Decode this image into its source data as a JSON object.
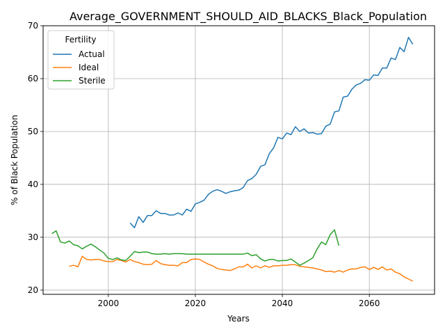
{
  "chart_data": {
    "type": "line",
    "title": "Average_GOVERNMENT_SHOULD_AID_BLACKS_Black_Population",
    "xlabel": "Years",
    "ylabel": "% of Black Population",
    "xlim": [
      1985,
      2075
    ],
    "ylim": [
      19.2,
      70
    ],
    "xticks": [
      2000,
      2020,
      2040,
      2060
    ],
    "yticks": [
      20,
      30,
      40,
      50,
      60,
      70
    ],
    "grid": true,
    "legend": {
      "title": "Fertility",
      "position": "top-left"
    },
    "series": [
      {
        "name": "Actual",
        "color": "#1f77b4",
        "x": [
          2005,
          2006,
          2007,
          2008,
          2009,
          2010,
          2011,
          2012,
          2013,
          2014,
          2015,
          2016,
          2017,
          2018,
          2019,
          2020,
          2021,
          2022,
          2023,
          2024,
          2025,
          2026,
          2027,
          2028,
          2029,
          2030,
          2031,
          2032,
          2033,
          2034,
          2035,
          2036,
          2037,
          2038,
          2039,
          2040,
          2041,
          2042,
          2043,
          2044,
          2045,
          2046,
          2047,
          2048,
          2049,
          2050,
          2051,
          2052,
          2053,
          2054,
          2055,
          2056,
          2057,
          2058,
          2059,
          2060,
          2061,
          2062,
          2063,
          2064,
          2065,
          2066,
          2067,
          2068,
          2069,
          2070
        ],
        "y": [
          32.7,
          31.8,
          33.9,
          32.8,
          34.1,
          34.1,
          35.0,
          34.5,
          34.5,
          34.2,
          34.2,
          34.6,
          34.2,
          35.3,
          34.9,
          36.3,
          36.6,
          37.0,
          38.1,
          38.7,
          39.0,
          38.7,
          38.3,
          38.6,
          38.8,
          38.9,
          39.4,
          40.7,
          41.1,
          41.9,
          43.4,
          43.7,
          45.8,
          46.9,
          48.9,
          48.6,
          49.7,
          49.4,
          50.9,
          50.0,
          50.5,
          49.7,
          49.8,
          49.5,
          49.6,
          51.0,
          51.4,
          53.7,
          53.9,
          56.5,
          56.7,
          58.0,
          58.8,
          59.1,
          59.8,
          59.7,
          60.7,
          60.6,
          62.0,
          62.0,
          63.9,
          63.6,
          65.9,
          65.1,
          67.8,
          66.5
        ]
      },
      {
        "name": "Ideal",
        "color": "#ff7f0e",
        "x": [
          1991,
          1992,
          1993,
          1994,
          1995,
          1996,
          1997,
          1998,
          1999,
          2000,
          2001,
          2002,
          2003,
          2004,
          2005,
          2006,
          2007,
          2008,
          2009,
          2010,
          2011,
          2012,
          2013,
          2014,
          2015,
          2016,
          2017,
          2018,
          2019,
          2020,
          2021,
          2022,
          2023,
          2024,
          2025,
          2026,
          2027,
          2028,
          2029,
          2030,
          2031,
          2032,
          2033,
          2034,
          2035,
          2036,
          2037,
          2038,
          2039,
          2040,
          2041,
          2042,
          2043,
          2044,
          2045,
          2046,
          2047,
          2048,
          2049,
          2050,
          2051,
          2052,
          2053,
          2054,
          2055,
          2056,
          2057,
          2058,
          2059,
          2060,
          2061,
          2062,
          2063,
          2064,
          2065,
          2066,
          2067,
          2068,
          2069,
          2070
        ],
        "y": [
          24.5,
          24.7,
          24.4,
          26.4,
          25.8,
          25.7,
          25.8,
          25.8,
          25.5,
          25.4,
          25.4,
          25.8,
          25.6,
          25.3,
          25.8,
          25.4,
          25.2,
          24.9,
          24.8,
          24.9,
          25.6,
          25.0,
          24.8,
          24.7,
          24.7,
          24.6,
          25.2,
          25.2,
          25.8,
          25.9,
          25.8,
          25.3,
          24.9,
          24.6,
          24.1,
          23.9,
          23.8,
          23.7,
          24.0,
          24.4,
          24.4,
          24.9,
          24.2,
          24.6,
          24.2,
          24.6,
          24.3,
          24.6,
          24.6,
          24.7,
          24.7,
          24.8,
          24.8,
          24.5,
          24.4,
          24.3,
          24.2,
          24.0,
          23.8,
          23.5,
          23.6,
          23.4,
          23.7,
          23.4,
          23.8,
          24.0,
          24.0,
          24.3,
          24.4,
          23.9,
          24.3,
          23.9,
          24.4,
          23.8,
          24.0,
          23.4,
          23.1,
          22.5,
          22.1,
          21.7
        ]
      },
      {
        "name": "Sterile",
        "color": "#2ca02c",
        "x": [
          1987,
          1988,
          1989,
          1990,
          1991,
          1992,
          1993,
          1994,
          1995,
          1996,
          1997,
          1998,
          1999,
          2000,
          2001,
          2002,
          2003,
          2004,
          2005,
          2006,
          2007,
          2008,
          2009,
          2010,
          2011,
          2012,
          2013,
          2014,
          2015,
          2016,
          2017,
          2018,
          2019,
          2020,
          2021,
          2022,
          2023,
          2024,
          2025,
          2026,
          2027,
          2028,
          2029,
          2030,
          2031,
          2032,
          2033,
          2034,
          2035,
          2036,
          2037,
          2038,
          2039,
          2040,
          2041,
          2042,
          2043,
          2044,
          2045,
          2046,
          2047,
          2048,
          2049,
          2050,
          2051,
          2052,
          2053
        ],
        "y": [
          30.7,
          31.2,
          29.1,
          28.9,
          29.3,
          28.6,
          28.4,
          27.8,
          28.3,
          28.7,
          28.2,
          27.6,
          27.0,
          26.0,
          25.8,
          26.1,
          25.7,
          25.6,
          26.4,
          27.3,
          27.1,
          27.2,
          27.2,
          26.9,
          26.8,
          26.8,
          26.9,
          26.8,
          26.9,
          26.9,
          26.9,
          26.8,
          26.8,
          26.8,
          26.8,
          26.8,
          26.8,
          26.8,
          26.8,
          26.8,
          26.8,
          26.8,
          26.8,
          26.8,
          26.8,
          27.0,
          26.5,
          26.7,
          25.9,
          25.5,
          25.8,
          25.8,
          25.5,
          25.6,
          25.6,
          25.9,
          25.3,
          24.7,
          25.1,
          25.6,
          26.1,
          27.8,
          29.1,
          28.6,
          30.5,
          31.4,
          28.4
        ]
      }
    ]
  }
}
